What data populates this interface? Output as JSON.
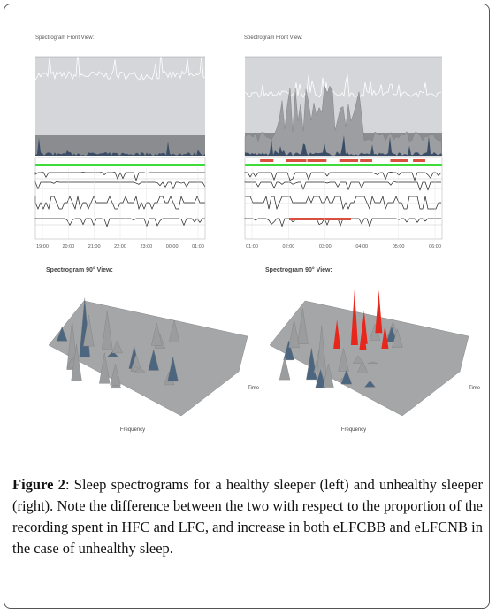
{
  "figure": {
    "front_views": [
      {
        "title": "Spectrogram Front View:",
        "x_ticks": [
          "19:00",
          "20:00",
          "21:00",
          "22:00",
          "23:00",
          "00:00",
          "01:00"
        ]
      },
      {
        "title": "Spectrogram Front View:",
        "x_ticks": [
          "01:00",
          "02:00",
          "03:00",
          "04:00",
          "05:00",
          "06:00"
        ]
      }
    ],
    "views_90": [
      {
        "title": "Spectrogram 90° View:",
        "x_label": "Frequency",
        "y_label": "Time"
      },
      {
        "title": "Spectrogram 90° View:",
        "x_label": "Frequency",
        "y_label": "Time"
      }
    ]
  },
  "caption": {
    "label": "Figure 2",
    "text": ": Sleep spectrograms for a healthy sleeper (left) and unhealthy sleeper (right). Note the difference between the two with respect to the proportion of the recording spent in HFC and LFC, and increase in both eLFCBB and eLFCNB in the case of unhealthy sleep."
  }
}
